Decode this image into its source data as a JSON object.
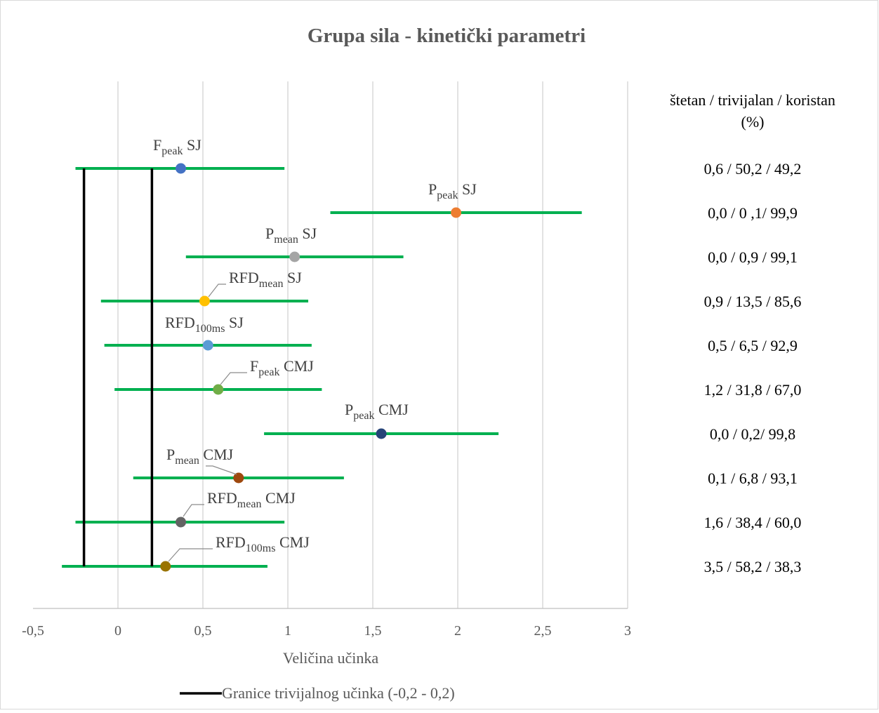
{
  "chart_data": {
    "type": "forest",
    "title": "Grupa sila - kinetički parametri",
    "xlabel": "Veličina učinka",
    "xlim": [
      -0.5,
      3
    ],
    "x_ticks": [
      "-0,5",
      "0",
      "0,5",
      "1",
      "1,5",
      "2",
      "2,5",
      "3"
    ],
    "x_tick_values": [
      -0.5,
      0,
      0.5,
      1,
      1.5,
      2,
      2.5,
      3
    ],
    "grid": "vertical",
    "threshold_lines": [
      -0.2,
      0.2
    ],
    "line_color": "#00b050",
    "points": [
      {
        "label": "F",
        "sub": "peak",
        "test": "SJ",
        "effect": 0.37,
        "ci": [
          -0.25,
          0.98
        ],
        "color": "#4472c4",
        "outcome": "0,6 / 50,2 / 49,2"
      },
      {
        "label": "P",
        "sub": "peak",
        "test": "SJ",
        "effect": 1.99,
        "ci": [
          1.25,
          2.73
        ],
        "color": "#ed7d31",
        "outcome": "0,0 / 0 ,1/ 99,9"
      },
      {
        "label": "P",
        "sub": "mean",
        "test": "SJ",
        "effect": 1.04,
        "ci": [
          0.4,
          1.68
        ],
        "color": "#a5a5a5",
        "outcome": "0,0 / 0,9 / 99,1"
      },
      {
        "label": "RFD",
        "sub": "mean",
        "test": "SJ",
        "effect": 0.51,
        "ci": [
          -0.1,
          1.12
        ],
        "color": "#ffc000",
        "outcome": "0,9 / 13,5 / 85,6"
      },
      {
        "label": "RFD",
        "sub": "100ms",
        "test": "SJ",
        "effect": 0.53,
        "ci": [
          -0.08,
          1.14
        ],
        "color": "#5b9bd5",
        "outcome": "0,5 / 6,5 / 92,9"
      },
      {
        "label": "F",
        "sub": "peak",
        "test": "CMJ",
        "effect": 0.59,
        "ci": [
          -0.02,
          1.2
        ],
        "color": "#70ad47",
        "outcome": "1,2 / 31,8 / 67,0"
      },
      {
        "label": "P",
        "sub": "peak",
        "test": "CMJ",
        "effect": 1.55,
        "ci": [
          0.86,
          2.24
        ],
        "color": "#264478",
        "outcome": "0,0 / 0,2/ 99,8"
      },
      {
        "label": "P",
        "sub": "mean",
        "test": "CMJ",
        "effect": 0.71,
        "ci": [
          0.09,
          1.33
        ],
        "color": "#9e480e",
        "outcome": "0,1 / 6,8 / 93,1"
      },
      {
        "label": "RFD",
        "sub": "mean",
        "test": "CMJ",
        "effect": 0.37,
        "ci": [
          -0.25,
          0.98
        ],
        "color": "#636363",
        "outcome": "1,6 / 38,4 / 60,0"
      },
      {
        "label": "RFD",
        "sub": "100ms",
        "test": "CMJ",
        "effect": 0.28,
        "ci": [
          -0.33,
          0.88
        ],
        "color": "#997300",
        "outcome": "3,5 / 58,2  / 38,3"
      }
    ],
    "side_header": [
      "štetan / trivijalan / koristan",
      "(%)"
    ],
    "legend": {
      "label": "Granice trivijalnog učinka (-0,2 - 0,2)",
      "color": "#000000",
      "position": "bottom"
    }
  }
}
